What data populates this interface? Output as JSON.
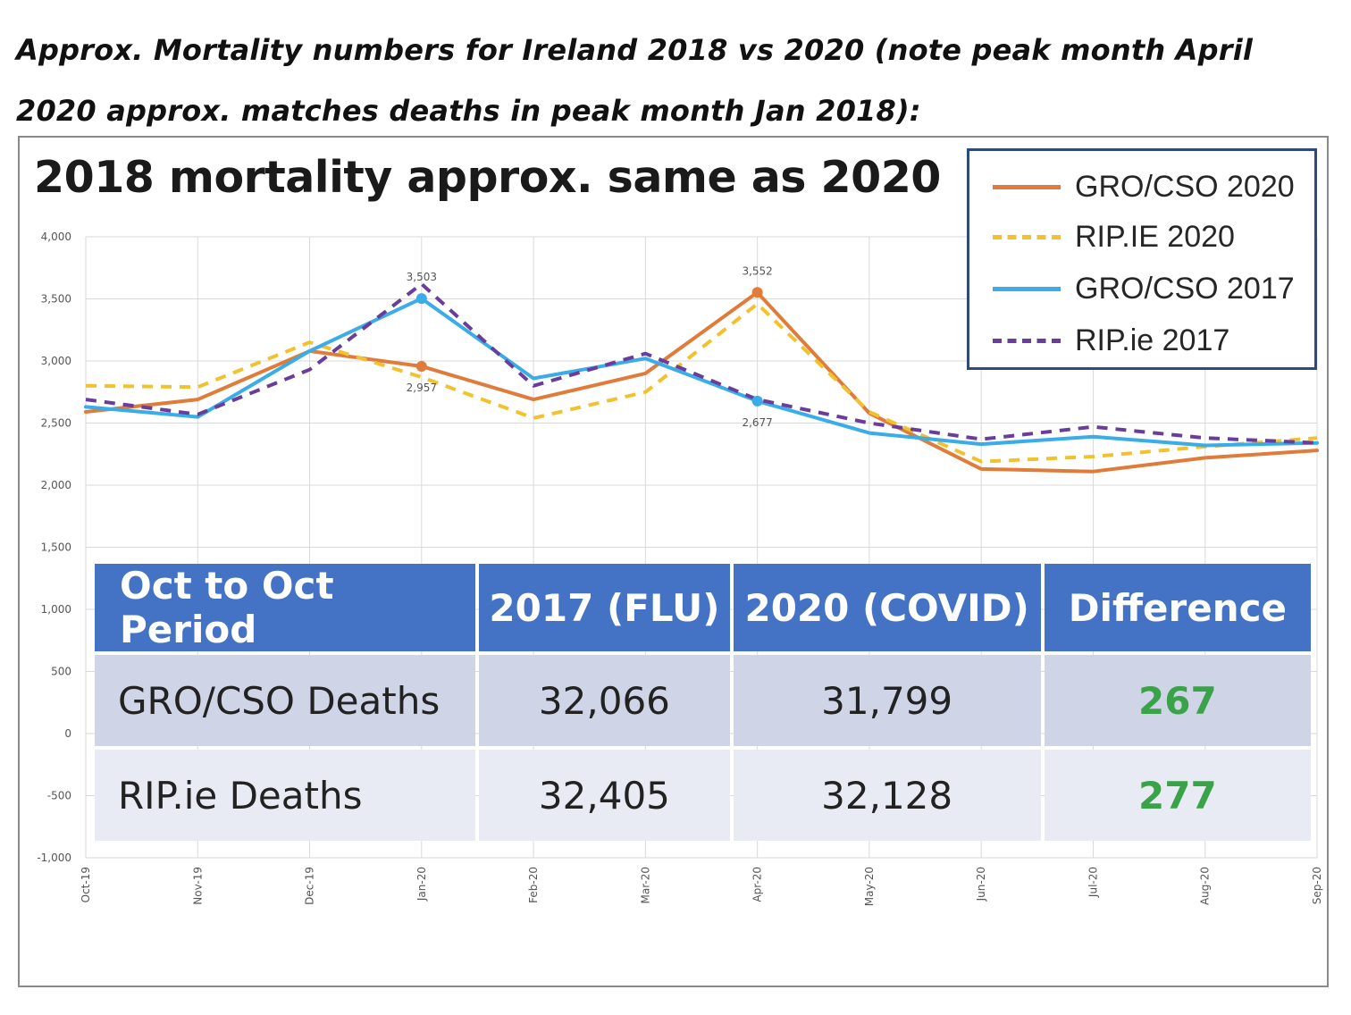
{
  "caption": "Approx. Mortality numbers for Ireland 2018 vs 2020 (note peak month April 2020 approx. matches deaths in peak month Jan 2018):",
  "chart_data": {
    "type": "line",
    "title": "2018 mortality approx. same as 2020",
    "categories": [
      "Oct-19",
      "Nov-19",
      "Dec-19",
      "Jan-20",
      "Feb-20",
      "Mar-20",
      "Apr-20",
      "May-20",
      "Jun-20",
      "Jul-20",
      "Aug-20",
      "Sep-20"
    ],
    "ylim": [
      -1000,
      4000
    ],
    "yticks": [
      4000,
      3500,
      3000,
      2500,
      2000,
      1500,
      1000,
      500,
      0,
      -500,
      -1000
    ],
    "ytick_labels": [
      "4,000",
      "3,500",
      "3,000",
      "2,500",
      "2,000",
      "1,500",
      "1,000",
      "500",
      "0",
      "-500",
      "-1,000"
    ],
    "grid": true,
    "legend_position": "top-right",
    "series": [
      {
        "name": "GRO/CSO 2020",
        "color": "#e07b39",
        "dash": "solid",
        "values": [
          2590,
          2690,
          3080,
          2957,
          2690,
          2900,
          3552,
          2580,
          2130,
          2110,
          2220,
          2280
        ],
        "markers": [
          {
            "index": 3,
            "label": "2,957"
          },
          {
            "index": 6,
            "label": "3,552"
          }
        ]
      },
      {
        "name": "RIP.IE 2020",
        "color": "#f2c12e",
        "dash": "dashed",
        "values": [
          2800,
          2790,
          3150,
          2870,
          2540,
          2750,
          3460,
          2590,
          2190,
          2230,
          2310,
          2380
        ]
      },
      {
        "name": "GRO/CSO 2017",
        "color": "#3aace8",
        "dash": "solid",
        "values": [
          2630,
          2550,
          3080,
          3503,
          2860,
          3020,
          2677,
          2420,
          2330,
          2390,
          2320,
          2340
        ],
        "markers": [
          {
            "index": 3,
            "label": "3,503"
          },
          {
            "index": 6,
            "label": "2,677"
          }
        ]
      },
      {
        "name": "RIP.ie 2017",
        "color": "#6a3d9a",
        "dash": "dashed",
        "values": [
          2690,
          2570,
          2930,
          3620,
          2800,
          3060,
          2690,
          2500,
          2370,
          2470,
          2380,
          2340
        ]
      }
    ]
  },
  "table": {
    "headers": [
      "Oct to Oct Period",
      "2017 (FLU)",
      "2020 (COVID)",
      "Difference"
    ],
    "rows": [
      {
        "label": "GRO/CSO Deaths",
        "flu": "32,066",
        "covid": "31,799",
        "diff": "267"
      },
      {
        "label": "RIP.ie Deaths",
        "flu": "32,405",
        "covid": "32,128",
        "diff": "277"
      }
    ]
  }
}
